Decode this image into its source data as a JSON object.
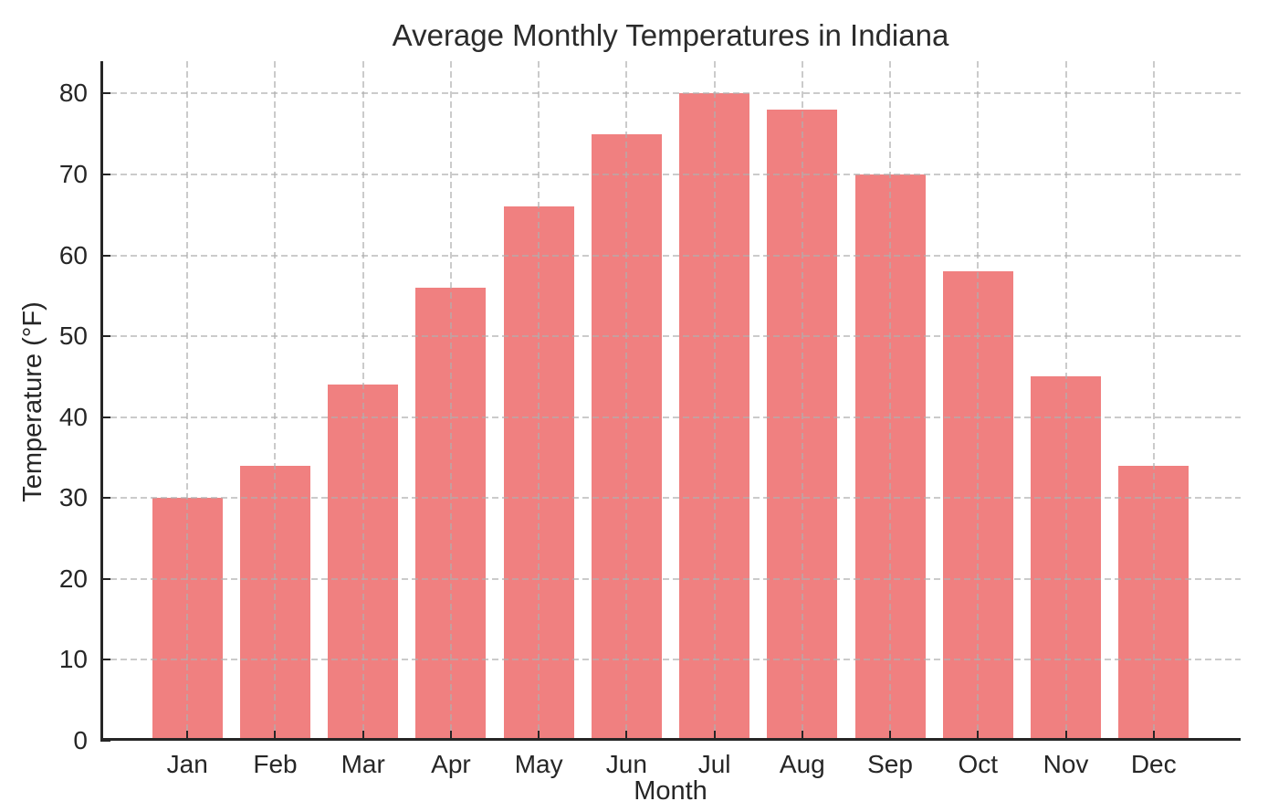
{
  "figure": {
    "background": "#ffffff",
    "text_color": "#262626"
  },
  "chart_data": {
    "type": "bar",
    "title": "Average Monthly Temperatures in Indiana",
    "xlabel": "Month",
    "ylabel": "Temperature (°F)",
    "categories": [
      "Jan",
      "Feb",
      "Mar",
      "Apr",
      "May",
      "Jun",
      "Jul",
      "Aug",
      "Sep",
      "Oct",
      "Nov",
      "Dec"
    ],
    "values": [
      30,
      34,
      44,
      56,
      66,
      75,
      80,
      78,
      70,
      58,
      45,
      34
    ],
    "ylim": [
      0,
      84
    ],
    "yticks": [
      0,
      10,
      20,
      30,
      40,
      50,
      60,
      70,
      80
    ],
    "bar_color": "#f08080",
    "grid_color": "#c9c9c9",
    "axis_color": "#262626",
    "grid": "dashed horizontal and vertical gridlines drawn over bars",
    "legend": "none"
  }
}
